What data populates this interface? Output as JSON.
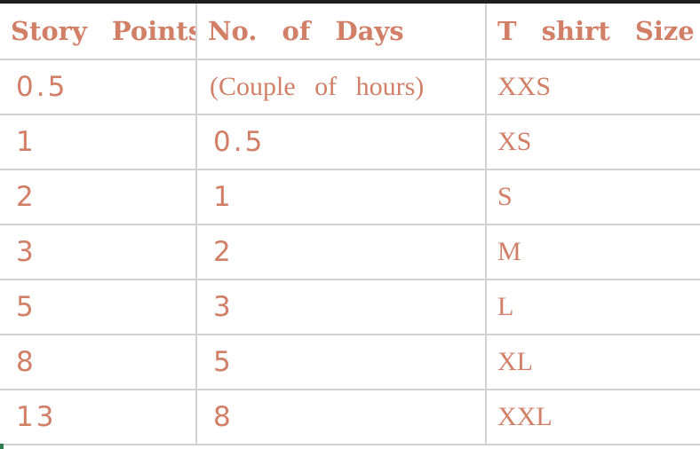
{
  "table": {
    "headers": [
      "Story Points",
      "No. of Days",
      "T shirt Size"
    ],
    "rows": [
      {
        "story_points": "0.5",
        "days": "(Couple of hours)",
        "size": "XXS"
      },
      {
        "story_points": "1",
        "days": "0.5",
        "size": "XS"
      },
      {
        "story_points": "2",
        "days": "1",
        "size": "S"
      },
      {
        "story_points": "3",
        "days": "2",
        "size": "M"
      },
      {
        "story_points": "5",
        "days": "3",
        "size": "L"
      },
      {
        "story_points": "8",
        "days": "5",
        "size": "XL"
      },
      {
        "story_points": "13",
        "days": "8",
        "size": "XXL"
      }
    ]
  },
  "colors": {
    "text": "#d17f66",
    "grid": "#d2d2d2",
    "top_border": "#1f1f1f"
  }
}
